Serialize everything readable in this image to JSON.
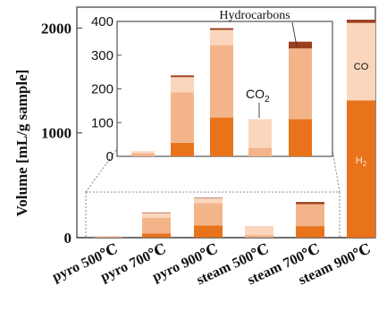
{
  "chart_data": {
    "type": "bar",
    "stacked": true,
    "title": "",
    "xlabel": "",
    "ylabel": "Volume [mL/g sample]",
    "ylim": [
      0,
      2200
    ],
    "yticks": [
      "0",
      "1000",
      "2000"
    ],
    "categories": [
      "pyro 500℃",
      "pyro 700℃",
      "pyro 900℃",
      "steam 500℃",
      "steam 700℃",
      "steam 900℃"
    ],
    "series": [
      {
        "name": "H2",
        "color": "#e8731a",
        "values": [
          0,
          40,
          115,
          0,
          110,
          1310
        ]
      },
      {
        "name": "CO2",
        "color": "#f4b48a",
        "values": [
          8,
          150,
          215,
          25,
          210,
          0
        ]
      },
      {
        "name": "CO",
        "color": "#fad6bc",
        "values": [
          7,
          45,
          45,
          85,
          0,
          740
        ]
      },
      {
        "name": "Hydrocarbons",
        "color": "#9a3e1e",
        "values": [
          0,
          5,
          5,
          0,
          20,
          30
        ]
      }
    ],
    "inset": {
      "ylim": [
        0,
        400
      ],
      "yticks": [
        "0",
        "100",
        "200",
        "300",
        "400"
      ],
      "categories_shown": [
        "pyro 500℃",
        "pyro 700℃",
        "pyro 900℃",
        "steam 500℃",
        "steam 700℃"
      ]
    },
    "annotations": {
      "hydrocarbons": "Hydrocarbons",
      "co2_main": "CO",
      "co2_sub": "2",
      "co": "CO",
      "h2_main": "H",
      "h2_sub": "2"
    }
  }
}
